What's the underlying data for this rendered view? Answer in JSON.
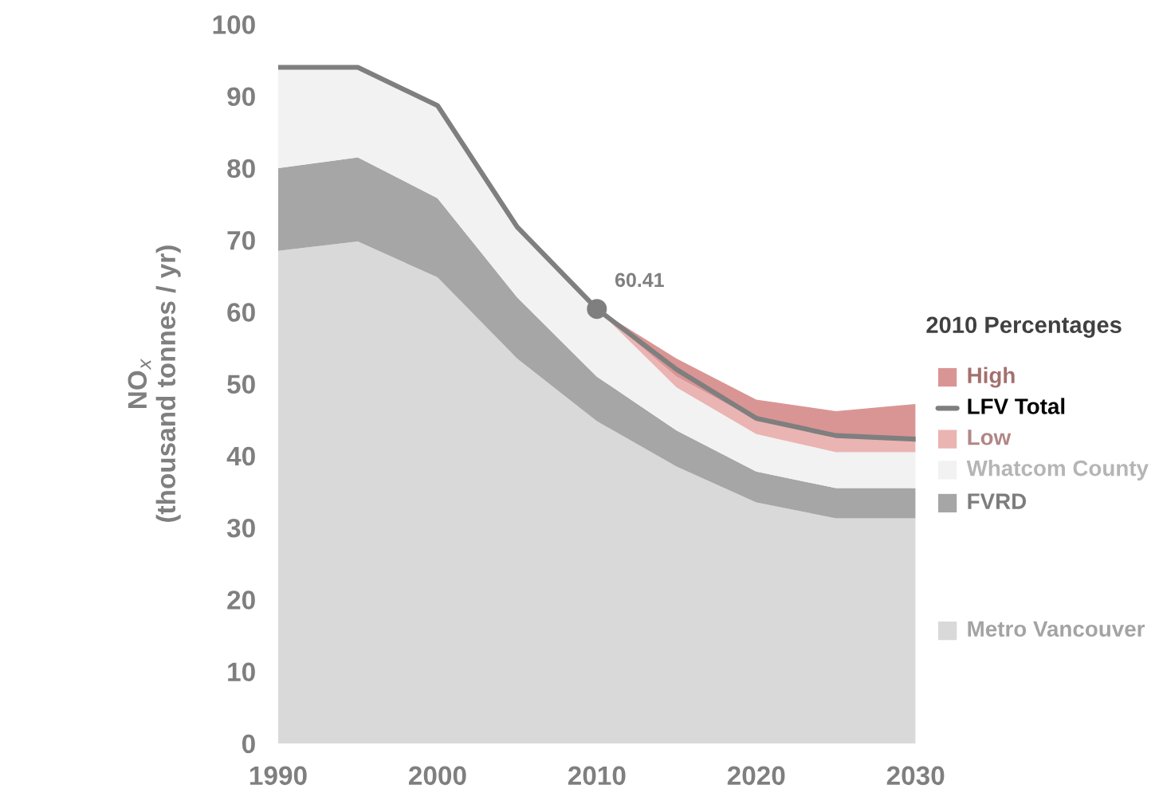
{
  "chart_data": {
    "type": "area",
    "stacked": true,
    "legend_title": "2010 Percentages",
    "ylabel": "NO$_{x}$\n(thousand tonnes / yr)",
    "x": [
      1990,
      1995,
      2000,
      2005,
      2010,
      2015,
      2020,
      2025,
      2030
    ],
    "series": [
      {
        "name": "Metro Vancouver",
        "color": "#d9d9d9",
        "values": [
          68.5,
          69.8,
          64.8,
          53.5,
          44.8,
          38.5,
          33.5,
          31.3,
          31.3
        ]
      },
      {
        "name": "FVRD",
        "color": "#a6a6a6",
        "values": [
          11.5,
          11.7,
          11.0,
          8.5,
          6.2,
          5.0,
          4.3,
          4.2,
          4.2
        ]
      },
      {
        "name": "Whatcom County",
        "color": "#f2f2f2",
        "values": [
          14.0,
          12.5,
          12.9,
          9.8,
          9.4,
          6.0,
          5.2,
          5.0,
          5.0
        ]
      },
      {
        "name": "Low",
        "color": "#eab4b3",
        "values": [
          null,
          null,
          null,
          null,
          0,
          1.5,
          2.0,
          2.3,
          1.8
        ]
      },
      {
        "name": "High",
        "color": "#d99594",
        "values": [
          null,
          null,
          null,
          null,
          0,
          2.5,
          2.8,
          3.4,
          4.9
        ]
      },
      {
        "name": "LFV Total",
        "type": "line",
        "color": "#7f7f7f",
        "values": [
          94,
          94,
          88.7,
          71.8,
          60.41,
          52.0,
          45.2,
          42.8,
          42.3
        ]
      }
    ],
    "annotations": [
      {
        "text": "60.41",
        "x": 2010,
        "y": 60.41
      }
    ],
    "xlim": [
      1990,
      2030
    ],
    "xticks": [
      1990,
      2000,
      2010,
      2020,
      2030
    ],
    "ylim": [
      0,
      100
    ],
    "yticks": [
      0,
      10,
      20,
      30,
      40,
      50,
      60,
      70,
      80,
      90,
      100
    ],
    "grid": false,
    "legend": "right"
  }
}
